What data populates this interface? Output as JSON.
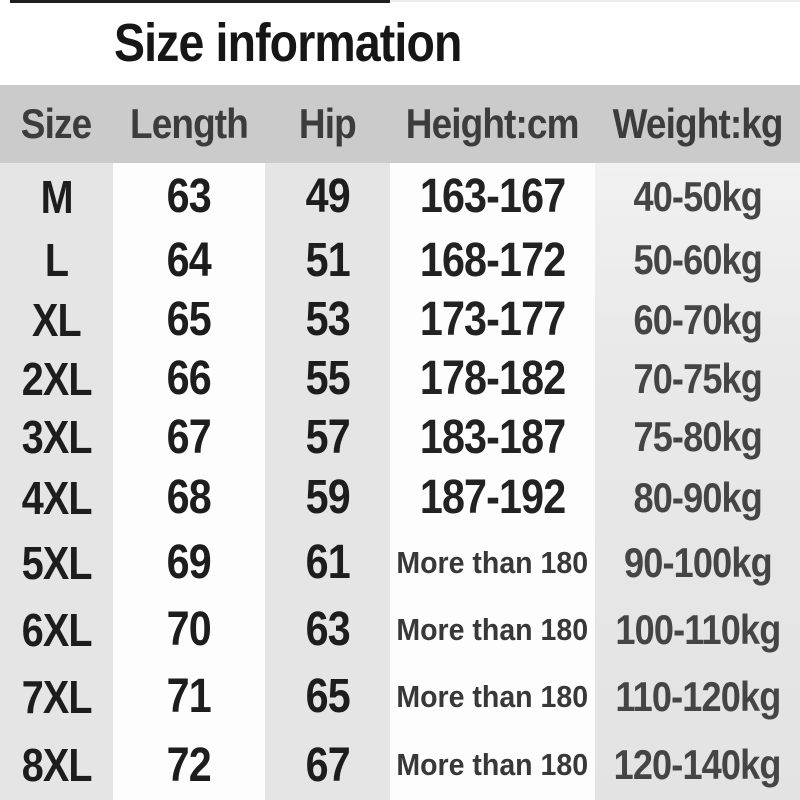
{
  "title": "Size information",
  "table": {
    "headers": [
      "Size",
      "Length",
      "Hip",
      "Height:cm",
      "Weight:kg"
    ],
    "rows": [
      {
        "size": "M",
        "length": "63",
        "hip": "49",
        "height": "163-167",
        "weight": "40-50kg"
      },
      {
        "size": "L",
        "length": "64",
        "hip": "51",
        "height": "168-172",
        "weight": "50-60kg"
      },
      {
        "size": "XL",
        "length": "65",
        "hip": "53",
        "height": "173-177",
        "weight": "60-70kg"
      },
      {
        "size": "2XL",
        "length": "66",
        "hip": "55",
        "height": "178-182",
        "weight": "70-75kg"
      },
      {
        "size": "3XL",
        "length": "67",
        "hip": "57",
        "height": "183-187",
        "weight": "75-80kg"
      },
      {
        "size": "4XL",
        "length": "68",
        "hip": "59",
        "height": "187-192",
        "weight": "80-90kg"
      },
      {
        "size": "5XL",
        "length": "69",
        "hip": "61",
        "height": "More than 180",
        "weight": "90-100kg"
      },
      {
        "size": "6XL",
        "length": "70",
        "hip": "63",
        "height": "More than 180",
        "weight": "100-110kg"
      },
      {
        "size": "7XL",
        "length": "71",
        "hip": "65",
        "height": "More than 180",
        "weight": "110-120kg"
      },
      {
        "size": "8XL",
        "length": "72",
        "hip": "67",
        "height": "More than 180",
        "weight": "120-140kg"
      }
    ]
  },
  "colors": {
    "header_bar": "#cbcbcb",
    "stripe_gray": "#e5e5e5",
    "stripe_white": "#fdfdfd",
    "stripe_weight": "#e9e9e9",
    "title_text": "#161616",
    "header_text": "#3c3c3c",
    "body_text": "#1d1d1d",
    "weight_text": "#454545"
  },
  "chart_data": {
    "type": "table",
    "title": "Size information",
    "columns": [
      "Size",
      "Length",
      "Hip",
      "Height:cm",
      "Weight:kg"
    ],
    "rows": [
      [
        "M",
        "63",
        "49",
        "163-167",
        "40-50kg"
      ],
      [
        "L",
        "64",
        "51",
        "168-172",
        "50-60kg"
      ],
      [
        "XL",
        "65",
        "53",
        "173-177",
        "60-70kg"
      ],
      [
        "2XL",
        "66",
        "55",
        "178-182",
        "70-75kg"
      ],
      [
        "3XL",
        "67",
        "57",
        "183-187",
        "75-80kg"
      ],
      [
        "4XL",
        "68",
        "59",
        "187-192",
        "80-90kg"
      ],
      [
        "5XL",
        "69",
        "61",
        "More than 180",
        "90-100kg"
      ],
      [
        "6XL",
        "70",
        "63",
        "More than 180",
        "100-110kg"
      ],
      [
        "7XL",
        "71",
        "65",
        "More than 180",
        "110-120kg"
      ],
      [
        "8XL",
        "72",
        "67",
        "More than 180",
        "120-140kg"
      ]
    ]
  }
}
